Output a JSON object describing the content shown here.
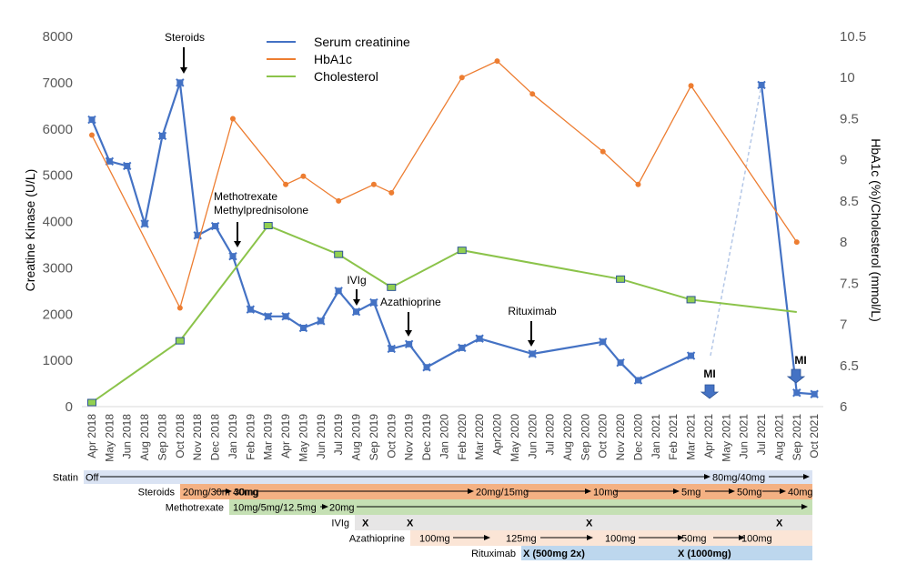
{
  "chart_data": {
    "type": "line",
    "title": "",
    "xlabel": "",
    "ylabel": "Creatine Kinase (U/L)",
    "ylabel_right": "HbA1c (%)/Cholesterol (mmol/L)",
    "ylim": [
      0,
      8000
    ],
    "ylim_right": [
      6,
      10.5
    ],
    "yticks": [
      0,
      1000,
      2000,
      3000,
      4000,
      5000,
      6000,
      7000,
      8000
    ],
    "yticks_right": [
      "6",
      "6.5",
      "7",
      "7.5",
      "8",
      "8.5",
      "9",
      "9.5",
      "10",
      "10.5"
    ],
    "grid": false,
    "legend_position": "top-center",
    "categories": [
      "Apr 2018",
      "May 2018",
      "Jun 2018",
      "Aug 2018",
      "Sep 2018",
      "Oct 2018",
      "Nov 2018",
      "Dec 2018",
      "Jan 2019",
      "Feb 2019",
      "Mar 2019",
      "Apr 2019",
      "May 2019",
      "Jun 2019",
      "Jul 2019",
      "Aug 2019",
      "Sep 2019",
      "Oct 2019",
      "Nov 2019",
      "Dec 2019",
      "Jan 2020",
      "Feb 2020",
      "Mar 2020",
      "Apr2020",
      "May 2020",
      "Jun 2020",
      "Jul 2020",
      "Aug 2020",
      "Sep 2020",
      "Oct 2020",
      "Nov 2020",
      "Dec 2020",
      "Jan 2021",
      "Feb 2021",
      "Mar 2021",
      "Apr 2021",
      "May 2021",
      "Jun 2021",
      "Jul 2021",
      "Aug 2021",
      "Sep 2021",
      "Oct 2021"
    ],
    "series": [
      {
        "name": "Serum creatinine",
        "axis": "left",
        "color": "#4472C4",
        "marker": "cross",
        "points": [
          {
            "x": "Apr 2018",
            "y": 6200
          },
          {
            "x": "May 2018",
            "y": 5300
          },
          {
            "x": "Jun 2018",
            "y": 5200
          },
          {
            "x": "Aug 2018",
            "y": 3950
          },
          {
            "x": "Sep 2018",
            "y": 5850
          },
          {
            "x": "Oct 2018",
            "y": 7000
          },
          {
            "x": "Nov 2018",
            "y": 3700
          },
          {
            "x": "Dec 2018",
            "y": 3900
          },
          {
            "x": "Jan 2019",
            "y": 3250
          },
          {
            "x": "Feb 2019",
            "y": 2100
          },
          {
            "x": "Mar 2019",
            "y": 1950
          },
          {
            "x": "Apr 2019",
            "y": 1950
          },
          {
            "x": "May 2019",
            "y": 1700
          },
          {
            "x": "Jun 2019",
            "y": 1850
          },
          {
            "x": "Jul 2019",
            "y": 2500
          },
          {
            "x": "Aug 2019",
            "y": 2050
          },
          {
            "x": "Sep 2019",
            "y": 2250
          },
          {
            "x": "Oct 2019",
            "y": 1250
          },
          {
            "x": "Nov 2019",
            "y": 1350
          },
          {
            "x": "Dec 2019",
            "y": 850
          },
          {
            "x": "Feb 2020",
            "y": 1270
          },
          {
            "x": "Mar 2020",
            "y": 1470
          },
          {
            "x": "Jun 2020",
            "y": 1140
          },
          {
            "x": "Oct 2020",
            "y": 1400
          },
          {
            "x": "Nov 2020",
            "y": 950
          },
          {
            "x": "Dec 2020",
            "y": 570
          },
          {
            "x": "Mar 2021",
            "y": 1100
          },
          {
            "x": "Jul 2021",
            "y": 6950,
            "gap_before": true
          },
          {
            "x": "Sep 2021",
            "y": 300
          },
          {
            "x": "Oct 2021",
            "y": 270
          }
        ]
      },
      {
        "name": "HbA1c",
        "axis": "right",
        "color": "#ED7D31",
        "marker": "circle",
        "points": [
          {
            "x": "Apr 2018",
            "y": 9.3
          },
          {
            "x": "Oct 2018",
            "y": 7.2
          },
          {
            "x": "Jan 2019",
            "y": 9.5
          },
          {
            "x": "Apr 2019",
            "y": 8.7
          },
          {
            "x": "May 2019",
            "y": 8.8
          },
          {
            "x": "Jul 2019",
            "y": 8.5
          },
          {
            "x": "Sep 2019",
            "y": 8.7
          },
          {
            "x": "Oct 2019",
            "y": 8.6
          },
          {
            "x": "Feb 2020",
            "y": 10.0
          },
          {
            "x": "Apr2020",
            "y": 10.2
          },
          {
            "x": "Jun 2020",
            "y": 9.8
          },
          {
            "x": "Oct 2020",
            "y": 9.1
          },
          {
            "x": "Dec 2020",
            "y": 8.7
          },
          {
            "x": "Mar 2021",
            "y": 9.9
          },
          {
            "x": "Sep 2021",
            "y": 8.0
          }
        ]
      },
      {
        "name": "Cholesterol",
        "axis": "right",
        "color": "#8BC34A",
        "marker": "square",
        "points": [
          {
            "x": "Apr 2018",
            "y": 6.05
          },
          {
            "x": "Oct 2018",
            "y": 6.8
          },
          {
            "x": "Mar 2019",
            "y": 8.2
          },
          {
            "x": "Jul 2019",
            "y": 7.85
          },
          {
            "x": "Oct 2019",
            "y": 7.45
          },
          {
            "x": "Feb 2020",
            "y": 7.9
          },
          {
            "x": "Nov 2020",
            "y": 7.55
          },
          {
            "x": "Mar 2021",
            "y": 7.3
          },
          {
            "x": "Sep 2021",
            "y": 7.15,
            "no_marker": true
          }
        ]
      }
    ],
    "annotations": [
      {
        "text": "Steroids",
        "at": "Oct 2018"
      },
      {
        "text": "Methotrexate",
        "text2": "Methylprednisolone",
        "at": "Jan 2019"
      },
      {
        "text": "IVIg",
        "at": "Aug 2019"
      },
      {
        "text": "Azathioprine",
        "at": "Nov 2019"
      },
      {
        "text": "Rituximab",
        "at": "Jun 2020"
      },
      {
        "text": "MI",
        "at": "Apr 2021",
        "kind": "event"
      },
      {
        "text": "MI",
        "at": "Sep 2021",
        "kind": "event"
      }
    ],
    "timeline": [
      {
        "label": "Statin",
        "start": "Apr 2018",
        "color": "#DAE3F3",
        "items": [
          {
            "text": "Off",
            "at": "Apr 2018"
          },
          {
            "text": "80mg/40mg",
            "at": "Apr 2021"
          }
        ]
      },
      {
        "label": "Steroids",
        "start": "Oct 2018",
        "color": "#F4B183",
        "items": [
          {
            "text": "20mg/30m 40mg",
            "at": "Oct 2018"
          },
          {
            "text": "30mg",
            "at": "Jan 2019"
          },
          {
            "text": "20mg/15mg",
            "at": "Feb 2020"
          },
          {
            "text": "10mg",
            "at": "Sep 2020"
          },
          {
            "text": "5mg",
            "at": "Mar 2021"
          },
          {
            "text": "50mg",
            "at": "May 2021"
          },
          {
            "text": "40mg",
            "at": "Aug 2021"
          }
        ]
      },
      {
        "label": "Methotrexate",
        "start": "Jan 2019",
        "color": "#C5E0B4",
        "items": [
          {
            "text": "10mg/5mg/12.5mg",
            "at": "Jan 2019"
          },
          {
            "text": "20mg",
            "at": "Jun 2019"
          }
        ]
      },
      {
        "label": "IVIg",
        "start": "Aug 2019",
        "color": "#E7E6E6",
        "items": [
          {
            "text": "X",
            "at": "Aug 2019",
            "mark": true
          },
          {
            "text": "X",
            "at": "Nov 2019",
            "mark": true
          },
          {
            "text": "X",
            "at": "Oct 2020",
            "mark": true
          },
          {
            "text": "X",
            "at": "Sep 2021",
            "mark": true
          }
        ]
      },
      {
        "label": "Azathioprine",
        "start": "Nov 2019",
        "color": "#FBE5D6",
        "items": [
          {
            "text": "100mg",
            "at": "Dec 2019"
          },
          {
            "text": "125mg",
            "at": "Apr2020"
          },
          {
            "text": "100mg",
            "at": "Nov 2020"
          },
          {
            "text": "50mg",
            "at": "Apr 2021"
          },
          {
            "text": "100mg",
            "at": "Jul 2021"
          }
        ]
      },
      {
        "label": "Rituximab",
        "start": "Jun 2020",
        "color": "#BDD7EE",
        "items": [
          {
            "text": "X (500mg 2x)",
            "at": "Jun 2020",
            "mark": true
          },
          {
            "text": "X (1000mg)",
            "at": "Feb 2021",
            "mark": true
          }
        ]
      }
    ]
  }
}
